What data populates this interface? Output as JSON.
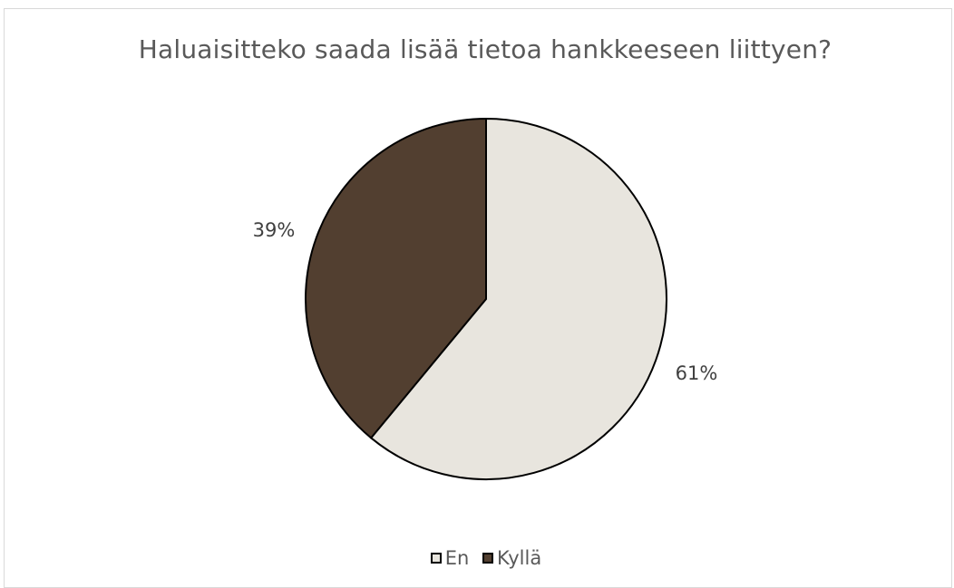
{
  "chart_data": {
    "type": "pie",
    "title": "Haluaisitteko saada lisää tietoa hankkeeseen liittyen?",
    "categories": [
      "En",
      "Kyllä"
    ],
    "values": [
      61,
      39
    ],
    "data_labels": [
      "61%",
      "39%"
    ],
    "colors": [
      "#e8e5de",
      "#523f30"
    ],
    "legend_position": "bottom",
    "slice_border_color": "#000000"
  }
}
